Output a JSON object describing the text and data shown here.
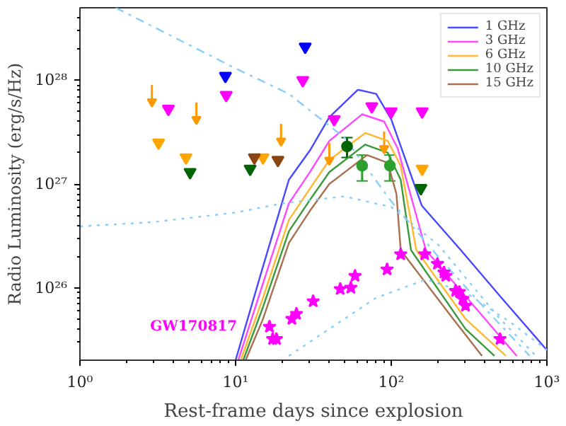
{
  "chart_data": {
    "type": "line",
    "xlabel": "Rest-frame days since explosion",
    "ylabel": "Radio Luminosity (erg/s/Hz)",
    "log": "xy",
    "grid": false,
    "legend": "top right",
    "xlim": [
      1,
      1000
    ],
    "ylim": [
      2e+25,
      5e+28
    ],
    "xticks": [
      {
        "value": 1,
        "label": "10⁰"
      },
      {
        "value": 10,
        "label": "10¹"
      },
      {
        "value": 100,
        "label": "10²"
      },
      {
        "value": 1000,
        "label": "10³"
      }
    ],
    "yticks": [
      {
        "value": 1e+26,
        "label": "10²⁶"
      },
      {
        "value": 1e+27,
        "label": "10²⁷"
      },
      {
        "value": 1e+28,
        "label": "10²⁸"
      }
    ],
    "series": [
      {
        "name": "1 GHz",
        "color": "#4848ff",
        "line_style": "solid",
        "x": [
          10,
          15,
          22,
          30,
          40,
          61,
          80,
          100,
          157,
          280,
          500,
          1000
        ],
        "values": [
          2e+25,
          1.6e+26,
          1.1e+27,
          2.1e+27,
          4.4e+27,
          8.1e+27,
          7.4e+27,
          4.2e+27,
          6.2e+26,
          2.3e+26,
          8.3e+25,
          2.5e+25
        ]
      },
      {
        "name": "3 GHz",
        "color": "#ff48ff",
        "line_style": "solid",
        "x": [
          10.4,
          15,
          22,
          30,
          40,
          65,
          90,
          110,
          167,
          300,
          640
        ],
        "values": [
          2e+25,
          1.1e+26,
          6.5e+26,
          1.3e+27,
          2.6e+27,
          4.7e+27,
          4e+27,
          2.2e+27,
          2.3e+26,
          8.3e+25,
          2.2e+25
        ]
      },
      {
        "name": "6 GHz",
        "color": "#ffb830",
        "line_style": "solid",
        "x": [
          10.8,
          15,
          22,
          30,
          40,
          68,
          95,
          115,
          145,
          300,
          545
        ],
        "values": [
          2e+25,
          8e+25,
          4.5e+26,
          9e+26,
          1.7e+27,
          3.1e+27,
          2.6e+27,
          1.5e+27,
          2.3e+26,
          5e+25,
          2.2e+25
        ]
      },
      {
        "name": "10 GHz",
        "color": "#3a9a3a",
        "line_style": "solid",
        "x": [
          11.2,
          15,
          22,
          30,
          40,
          68,
          95,
          115,
          134,
          300,
          460
        ],
        "values": [
          2e+25,
          6.5e+25,
          3.5e+26,
          7e+26,
          1.3e+27,
          2.4e+27,
          2e+27,
          1.1e+27,
          2.3e+26,
          4e+25,
          2.2e+25
        ]
      },
      {
        "name": "15 GHz",
        "color": "#a87050",
        "line_style": "solid",
        "x": [
          11.6,
          15,
          22,
          30,
          40,
          70,
          95,
          108,
          115,
          250,
          383
        ],
        "values": [
          2e+25,
          5e+25,
          2.7e+26,
          5.5e+26,
          1e+27,
          1.9e+27,
          1.6e+27,
          8e+26,
          2.3e+26,
          5e+25,
          2.2e+25
        ]
      },
      {
        "color": "#87cefa",
        "line_style": "dashdot",
        "x": [
          1.7,
          10,
          22,
          50,
          100,
          200,
          400,
          775
        ],
        "values": [
          5e+28,
          1.3e+28,
          7.4e+27,
          2.8e+27,
          6.8e+26,
          2e+26,
          6.3e+25,
          2.2e+25
        ]
      },
      {
        "color": "#87cefa",
        "line_style": "dotted",
        "x": [
          1,
          3,
          10,
          20,
          50,
          100,
          200,
          500,
          850
        ],
        "values": [
          3.9e+26,
          4.3e+26,
          5.3e+26,
          6.5e+26,
          7.6e+26,
          6e+26,
          2.6e+26,
          5e+25,
          2.2e+25
        ]
      },
      {
        "color": "#87cefa",
        "line_style": "dotted",
        "x": [
          22,
          40,
          80,
          167,
          300,
          600,
          1000
        ],
        "values": [
          2.2e+25,
          4e+25,
          8e+25,
          1.2e+26,
          9e+25,
          4.5e+25,
          2.5e+25
        ]
      },
      {
        "type": "scatter",
        "marker": "triangle",
        "color": "#0000ff",
        "x": [
          8.6,
          28
        ],
        "values": [
          1.1e+28,
          2.1e+28
        ]
      },
      {
        "type": "scatter",
        "marker": "triangle",
        "color": "#ff00ff",
        "x": [
          3.7,
          8.7,
          27,
          43,
          75,
          100,
          158
        ],
        "values": [
          5.3e+27,
          7.2e+27,
          1e+28,
          4.2e+27,
          5.6e+27,
          5e+27,
          5e+27
        ]
      },
      {
        "type": "scatter",
        "marker": "triangle",
        "color": "#ffa500",
        "x": [
          3.2,
          4.8,
          15,
          158
        ],
        "values": [
          2.5e+27,
          1.8e+27,
          1.8e+27,
          1.4e+27
        ]
      },
      {
        "type": "scatter",
        "marker": "triangle",
        "color": "#006400",
        "x": [
          5.1,
          12.4,
          155
        ],
        "values": [
          1.3e+27,
          1.4e+27,
          9.1e+26
        ]
      },
      {
        "type": "scatter",
        "marker": "triangle",
        "color": "#8b4513",
        "x": [
          13.2,
          18.7
        ],
        "values": [
          1.8e+27,
          1.7e+27
        ]
      },
      {
        "type": "scatter",
        "marker": "triangle",
        "color": "#ff9900",
        "x": [
          2.9,
          5.6,
          19.6,
          40,
          90
        ],
        "values": [
          6.2e+27,
          4.2e+27,
          2.6e+27,
          1.7e+27,
          2.2e+27
        ],
        "errors": [
          [
            6.2e+27,
            9e+27
          ],
          [
            4.2e+27,
            6.1e+27
          ],
          [
            2.6e+27,
            3.8e+27
          ],
          [
            1.7e+27,
            2.5e+27
          ],
          [
            2.2e+27,
            3.2e+27
          ]
        ]
      },
      {
        "type": "scatter",
        "marker": "circle",
        "color": "#006400",
        "x": [
          52
        ],
        "values": [
          2.3e+27
        ],
        "errors": [
          [
            1.8e+27,
            2.8e+27
          ]
        ]
      },
      {
        "type": "scatter",
        "marker": "circle",
        "color": "#2ca02c",
        "x": [
          65,
          98
        ],
        "values": [
          1.5e+27,
          1.5e+27
        ],
        "errors": [
          [
            1.07e+27,
            1.9e+27
          ],
          [
            1.07e+27,
            1.9e+27
          ]
        ]
      },
      {
        "name": "GW170817",
        "type": "scatter",
        "marker": "star",
        "color": "#ff00ff",
        "x": [
          16.5,
          17.3,
          18.3,
          23,
          24.6,
          31.5,
          47,
          55,
          58.5,
          94,
          115,
          164,
          198,
          218,
          224,
          259,
          274,
          288,
          300,
          500
        ],
        "values": [
          4.2e+25,
          3.2e+25,
          3.2e+25,
          5e+25,
          5.6e+25,
          7.4e+25,
          9.7e+25,
          1e+26,
          1.3e+26,
          1.5e+26,
          2.1e+26,
          2.1e+26,
          1.7e+26,
          1.4e+26,
          1.3e+26,
          9.3e+25,
          9.1e+25,
          7.8e+25,
          6.7e+25,
          3.2e+25
        ]
      }
    ]
  }
}
